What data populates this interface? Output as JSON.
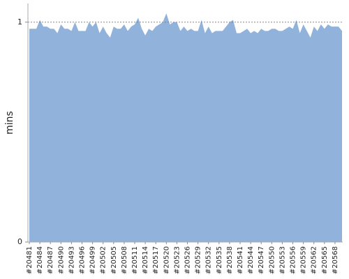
{
  "chart_data": {
    "type": "area",
    "y_label": "mins",
    "categories": [
      "#20481",
      null,
      null,
      "#20484",
      null,
      null,
      "#20487",
      null,
      null,
      "#20490",
      null,
      null,
      "#20493",
      null,
      null,
      "#20496",
      null,
      null,
      "#20499",
      null,
      null,
      "#20502",
      null,
      null,
      "#20505",
      null,
      null,
      "#20508",
      null,
      null,
      "#20511",
      null,
      null,
      "#20514",
      null,
      null,
      "#20517",
      null,
      null,
      "#20520",
      null,
      null,
      "#20523",
      null,
      null,
      "#20526",
      null,
      null,
      "#20529",
      null,
      null,
      "#20532",
      null,
      null,
      "#20535",
      null,
      null,
      "#20538",
      null,
      null,
      "#20541",
      null,
      null,
      "#20544",
      null,
      null,
      "#20547",
      null,
      null,
      "#20550",
      null,
      null,
      "#20553",
      null,
      null,
      "#20556",
      null,
      null,
      "#20559",
      null,
      null,
      "#20562",
      null,
      null,
      "#20565",
      null,
      null,
      "#20568",
      null,
      null
    ],
    "values": [
      0.97,
      0.97,
      0.97,
      1.01,
      0.98,
      0.98,
      0.97,
      0.97,
      0.95,
      0.99,
      0.97,
      0.97,
      0.96,
      1.0,
      0.96,
      0.96,
      0.96,
      1.0,
      0.98,
      1.0,
      0.95,
      0.98,
      0.95,
      0.93,
      0.98,
      0.97,
      0.97,
      0.99,
      0.96,
      0.98,
      0.99,
      1.02,
      0.97,
      0.94,
      0.97,
      0.96,
      0.98,
      0.99,
      1.0,
      1.04,
      0.99,
      1.0,
      1.0,
      0.96,
      0.98,
      0.96,
      0.97,
      0.96,
      0.96,
      1.01,
      0.95,
      0.98,
      0.95,
      0.96,
      0.96,
      0.96,
      0.98,
      1.0,
      1.01,
      0.95,
      0.95,
      0.96,
      0.97,
      0.95,
      0.96,
      0.95,
      0.97,
      0.96,
      0.96,
      0.97,
      0.97,
      0.96,
      0.96,
      0.97,
      0.98,
      0.97,
      1.01,
      0.95,
      0.99,
      0.96,
      0.93,
      0.98,
      0.96,
      0.99,
      0.97,
      0.99,
      0.98,
      0.98,
      0.98,
      0.96
    ],
    "color": "#91b2db",
    "ylim": [
      0,
      1.085
    ],
    "yticks": [
      0,
      1
    ],
    "grid": true
  }
}
